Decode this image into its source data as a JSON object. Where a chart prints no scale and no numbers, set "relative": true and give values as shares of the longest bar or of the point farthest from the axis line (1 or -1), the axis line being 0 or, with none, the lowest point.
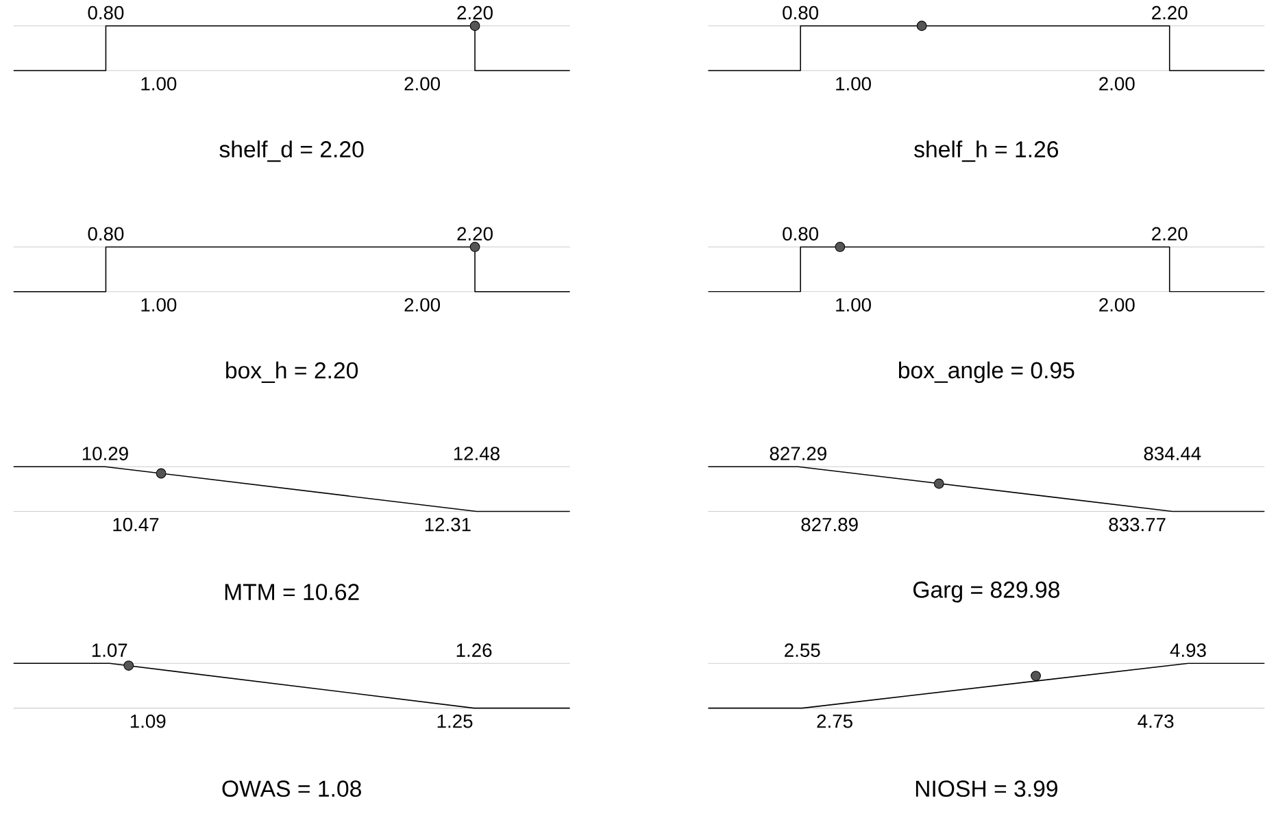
{
  "chart_data": [
    {
      "type": "line",
      "relative": true,
      "xlabel": "shelf_d = 2.20",
      "xlim": [
        0.45,
        2.56
      ],
      "x2lim": [
        0.45,
        2.56
      ],
      "xticks": [
        {
          "value": 1.0,
          "label": "1.00"
        },
        {
          "value": 2.0,
          "label": "2.00"
        }
      ],
      "x2ticks": [
        {
          "value": 0.8,
          "label": "0.80"
        },
        {
          "value": 2.2,
          "label": "2.20"
        }
      ],
      "series": [
        {
          "type": "line",
          "color": "#000000",
          "x": [
            0.45,
            0.8,
            0.8,
            2.2,
            2.2,
            2.56
          ],
          "values": [
            0,
            0,
            1,
            1,
            0,
            0
          ]
        },
        {
          "type": "scatter",
          "color": "#555555",
          "x": [
            2.2
          ],
          "values": [
            1
          ]
        }
      ]
    },
    {
      "type": "line",
      "relative": true,
      "xlabel": "shelf_h = 1.26",
      "xlim": [
        0.45,
        2.56
      ],
      "x2lim": [
        0.45,
        2.56
      ],
      "xticks": [
        {
          "value": 1.0,
          "label": "1.00"
        },
        {
          "value": 2.0,
          "label": "2.00"
        }
      ],
      "x2ticks": [
        {
          "value": 0.8,
          "label": "0.80"
        },
        {
          "value": 2.2,
          "label": "2.20"
        }
      ],
      "series": [
        {
          "type": "line",
          "color": "#000000",
          "x": [
            0.45,
            0.8,
            0.8,
            2.2,
            2.2,
            2.56
          ],
          "values": [
            0,
            0,
            1,
            1,
            0,
            0
          ]
        },
        {
          "type": "scatter",
          "color": "#555555",
          "x": [
            1.26
          ],
          "values": [
            1
          ]
        }
      ]
    },
    {
      "type": "line",
      "relative": true,
      "xlabel": "box_h = 2.20",
      "xlim": [
        0.45,
        2.56
      ],
      "x2lim": [
        0.45,
        2.56
      ],
      "xticks": [
        {
          "value": 1.0,
          "label": "1.00"
        },
        {
          "value": 2.0,
          "label": "2.00"
        }
      ],
      "x2ticks": [
        {
          "value": 0.8,
          "label": "0.80"
        },
        {
          "value": 2.2,
          "label": "2.20"
        }
      ],
      "series": [
        {
          "type": "line",
          "color": "#000000",
          "x": [
            0.45,
            0.8,
            0.8,
            2.2,
            2.2,
            2.56
          ],
          "values": [
            0,
            0,
            1,
            1,
            0,
            0
          ]
        },
        {
          "type": "scatter",
          "color": "#555555",
          "x": [
            2.2
          ],
          "values": [
            1
          ]
        }
      ]
    },
    {
      "type": "line",
      "relative": true,
      "xlabel": "box_angle = 0.95",
      "xlim": [
        0.45,
        2.56
      ],
      "x2lim": [
        0.45,
        2.56
      ],
      "xticks": [
        {
          "value": 1.0,
          "label": "1.00"
        },
        {
          "value": 2.0,
          "label": "2.00"
        }
      ],
      "x2ticks": [
        {
          "value": 0.8,
          "label": "0.80"
        },
        {
          "value": 2.2,
          "label": "2.20"
        }
      ],
      "series": [
        {
          "type": "line",
          "color": "#000000",
          "x": [
            0.45,
            0.8,
            0.8,
            2.2,
            2.2,
            2.56
          ],
          "values": [
            0,
            0,
            1,
            1,
            0,
            0
          ]
        },
        {
          "type": "scatter",
          "color": "#555555",
          "x": [
            0.95
          ],
          "values": [
            1
          ]
        }
      ]
    },
    {
      "type": "line",
      "relative": true,
      "xlabel": "MTM = 10.62",
      "xlim": [
        9.75,
        13.03
      ],
      "x2lim": [
        9.75,
        13.03
      ],
      "xticks": [
        {
          "value": 10.47,
          "label": "10.47"
        },
        {
          "value": 12.31,
          "label": "12.31"
        }
      ],
      "x2ticks": [
        {
          "value": 10.29,
          "label": "10.29"
        },
        {
          "value": 12.48,
          "label": "12.48"
        }
      ],
      "series": [
        {
          "type": "line",
          "color": "#000000",
          "x": [
            9.75,
            10.29,
            12.48,
            13.03
          ],
          "values": [
            1,
            1,
            0,
            0
          ]
        },
        {
          "type": "scatter",
          "color": "#555555",
          "x": [
            10.62
          ],
          "values": [
            0.85
          ]
        }
      ]
    },
    {
      "type": "line",
      "relative": true,
      "xlabel": "Garg = 829.98",
      "xlim": [
        825.57,
        836.2
      ],
      "x2lim": [
        825.57,
        836.2
      ],
      "xticks": [
        {
          "value": 827.89,
          "label": "827.89"
        },
        {
          "value": 833.77,
          "label": "833.77"
        }
      ],
      "x2ticks": [
        {
          "value": 827.29,
          "label": "827.29"
        },
        {
          "value": 834.44,
          "label": "834.44"
        }
      ],
      "series": [
        {
          "type": "line",
          "color": "#000000",
          "x": [
            825.57,
            827.29,
            834.44,
            836.2
          ],
          "values": [
            1,
            1,
            0,
            0
          ]
        },
        {
          "type": "scatter",
          "color": "#555555",
          "x": [
            829.98
          ],
          "values": [
            0.62
          ]
        }
      ]
    },
    {
      "type": "line",
      "relative": true,
      "xlabel": "OWAS = 1.08",
      "xlim": [
        1.02,
        1.31
      ],
      "x2lim": [
        1.02,
        1.31
      ],
      "xticks": [
        {
          "value": 1.09,
          "label": "1.09"
        },
        {
          "value": 1.25,
          "label": "1.25"
        }
      ],
      "x2ticks": [
        {
          "value": 1.07,
          "label": "1.07"
        },
        {
          "value": 1.26,
          "label": "1.26"
        }
      ],
      "series": [
        {
          "type": "line",
          "color": "#000000",
          "x": [
            1.02,
            1.07,
            1.26,
            1.31
          ],
          "values": [
            1,
            1,
            0,
            0
          ]
        },
        {
          "type": "scatter",
          "color": "#555555",
          "x": [
            1.08
          ],
          "values": [
            0.95
          ]
        }
      ]
    },
    {
      "type": "line",
      "relative": true,
      "xlabel": "NIOSH = 3.99",
      "xlim": [
        1.97,
        5.4
      ],
      "x2lim": [
        1.97,
        5.4
      ],
      "xticks": [
        {
          "value": 2.75,
          "label": "2.75"
        },
        {
          "value": 4.73,
          "label": "4.73"
        }
      ],
      "x2ticks": [
        {
          "value": 2.55,
          "label": "2.55"
        },
        {
          "value": 4.93,
          "label": "4.93"
        }
      ],
      "series": [
        {
          "type": "line",
          "color": "#000000",
          "x": [
            1.97,
            2.55,
            4.93,
            5.4
          ],
          "values": [
            0,
            0,
            1,
            1
          ]
        },
        {
          "type": "scatter",
          "color": "#555555",
          "x": [
            3.99
          ],
          "values": [
            0.72
          ]
        }
      ]
    }
  ]
}
